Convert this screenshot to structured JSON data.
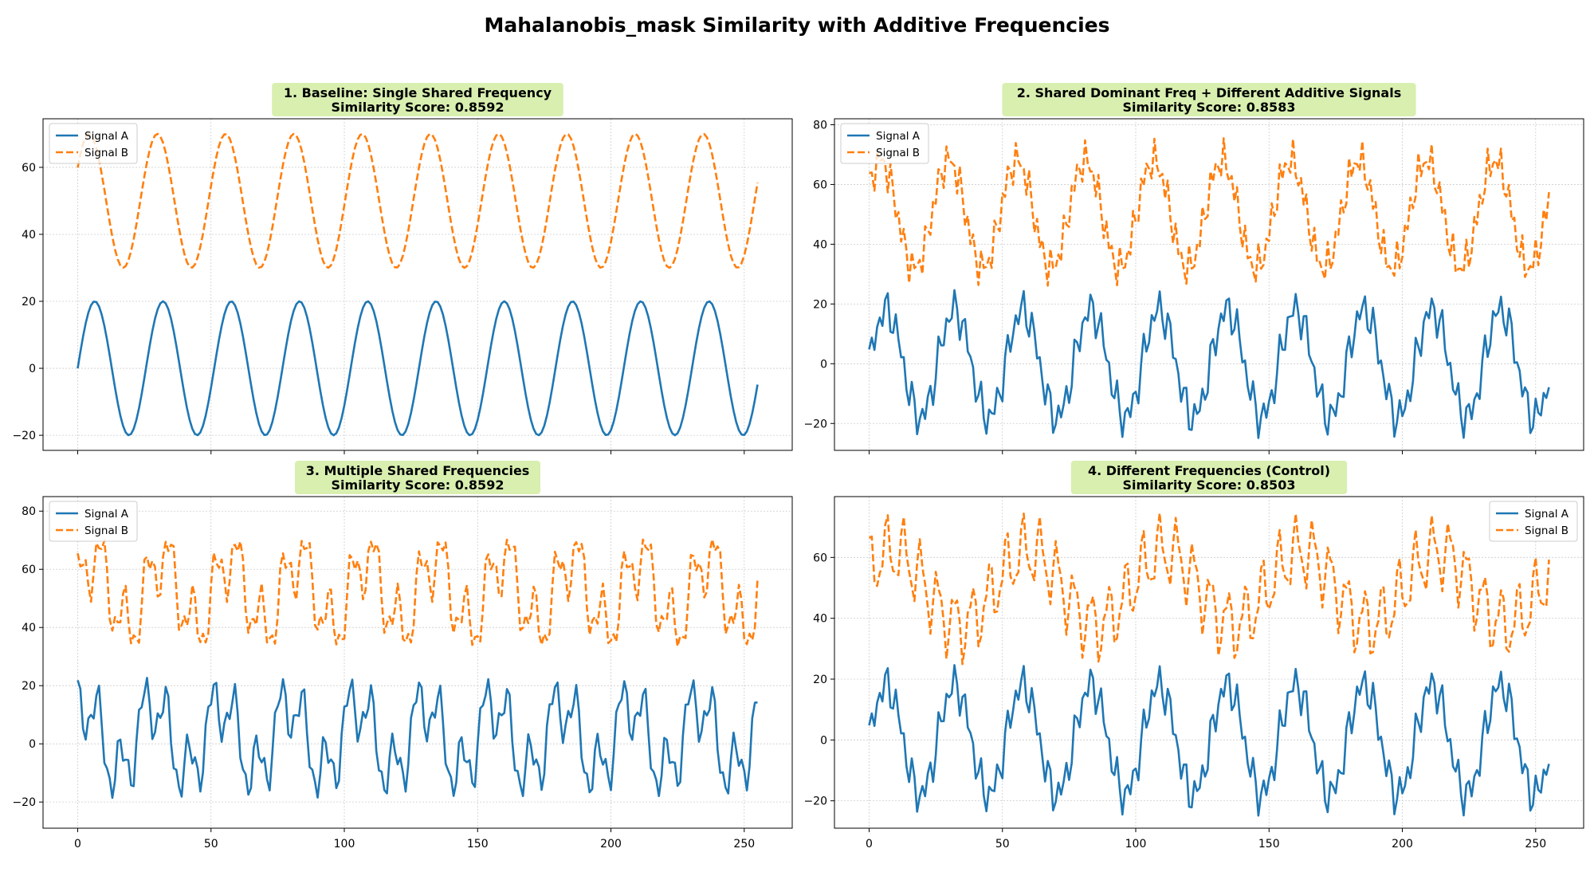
{
  "figure": {
    "title": "Mahalanobis_mask Similarity with Additive Frequencies",
    "colors": {
      "signal_a": "#1f77b4",
      "signal_b": "#ff7f0e",
      "title_box": "#d8efb0",
      "grid": "#cccccc"
    }
  },
  "chart_data": [
    {
      "type": "line",
      "title": "1. Baseline: Single Shared Frequency",
      "subtitle": "Similarity Score: 0.8592",
      "xlim": [
        -13,
        268
      ],
      "ylim": [
        -24.5,
        74.5
      ],
      "yticks": [
        -20,
        0,
        20,
        40,
        60
      ],
      "xticks": [
        0,
        50,
        100,
        150,
        200,
        250
      ],
      "show_xtick_labels": false,
      "legend_position": "upper-left",
      "grid": true,
      "x_range": [
        0,
        255
      ],
      "series": [
        {
          "name": "Signal A",
          "style": "solid",
          "color": "#1f77b4",
          "offset": 0,
          "components": [
            {
              "amp": 20,
              "period": 25.6,
              "phase": 0
            }
          ]
        },
        {
          "name": "Signal B",
          "style": "dashed",
          "color": "#ff7f0e",
          "offset": 50,
          "components": [
            {
              "amp": 20,
              "period": 25.6,
              "phase": 0.52
            }
          ]
        }
      ]
    },
    {
      "type": "line",
      "title": "2. Shared Dominant Freq + Different Additive Signals",
      "subtitle": "Similarity Score: 0.8583",
      "xlim": [
        -13,
        268
      ],
      "ylim": [
        -29,
        82
      ],
      "yticks": [
        -20,
        0,
        20,
        40,
        60,
        80
      ],
      "xticks": [
        0,
        50,
        100,
        150,
        200,
        250
      ],
      "show_xtick_labels": false,
      "legend_position": "upper-left",
      "grid": true,
      "x_range": [
        0,
        255
      ],
      "series": [
        {
          "name": "Signal A",
          "style": "solid",
          "color": "#1f77b4",
          "offset": 0,
          "components": [
            {
              "amp": 18,
              "period": 25.6,
              "phase": 0
            },
            {
              "amp": 5,
              "period": 3.2,
              "phase": 0.9
            },
            {
              "amp": 3,
              "period": 5.1,
              "phase": 0.3
            }
          ]
        },
        {
          "name": "Signal B",
          "style": "dashed",
          "color": "#ff7f0e",
          "offset": 50,
          "components": [
            {
              "amp": 18,
              "period": 25.6,
              "phase": 0.52
            },
            {
              "amp": 5,
              "period": 2.6,
              "phase": 0.4
            },
            {
              "amp": 3,
              "period": 4.3,
              "phase": 1.7
            }
          ]
        }
      ]
    },
    {
      "type": "line",
      "title": "3. Multiple Shared Frequencies",
      "subtitle": "Similarity Score: 0.8592",
      "xlim": [
        -13,
        268
      ],
      "ylim": [
        -29,
        85
      ],
      "yticks": [
        -20,
        0,
        20,
        40,
        60,
        80
      ],
      "xticks": [
        0,
        50,
        100,
        150,
        200,
        250
      ],
      "show_xtick_labels": true,
      "legend_position": "upper-left",
      "grid": true,
      "x_range": [
        0,
        255
      ],
      "series": [
        {
          "name": "Signal A",
          "style": "solid",
          "color": "#1f77b4",
          "offset": 2,
          "components": [
            {
              "amp": 12,
              "period": 25.6,
              "phase": 0.9
            },
            {
              "amp": 10,
              "period": 8.533,
              "phase": 2.2
            },
            {
              "amp": 5,
              "period": 3.66,
              "phase": 0.5
            }
          ]
        },
        {
          "name": "Signal B",
          "style": "dashed",
          "color": "#ff7f0e",
          "offset": 52,
          "components": [
            {
              "amp": 12,
              "period": 25.6,
              "phase": 0.1
            },
            {
              "amp": 10,
              "period": 8.533,
              "phase": 1.2
            },
            {
              "amp": 5,
              "period": 3.66,
              "phase": 2.5
            }
          ]
        }
      ]
    },
    {
      "type": "line",
      "title": "4. Different Frequencies (Control)",
      "subtitle": "Similarity Score: 0.8503",
      "xlim": [
        -13,
        268
      ],
      "ylim": [
        -29,
        80
      ],
      "yticks": [
        -20,
        0,
        20,
        40,
        60
      ],
      "xticks": [
        0,
        50,
        100,
        150,
        200,
        250
      ],
      "show_xtick_labels": true,
      "legend_position": "upper-right",
      "grid": true,
      "x_range": [
        0,
        255
      ],
      "series": [
        {
          "name": "Signal A",
          "style": "solid",
          "color": "#1f77b4",
          "offset": 0,
          "components": [
            {
              "amp": 18,
              "period": 25.6,
              "phase": 0
            },
            {
              "amp": 5,
              "period": 3.2,
              "phase": 0.9
            },
            {
              "amp": 3,
              "period": 5.1,
              "phase": 0.3
            }
          ]
        },
        {
          "name": "Signal B",
          "style": "dashed",
          "color": "#ff7f0e",
          "offset": 50,
          "components": [
            {
              "amp": 12,
              "period": 51.2,
              "phase": 0.5
            },
            {
              "amp": 10,
              "period": 6.4,
              "phase": 1.4
            },
            {
              "amp": 4,
              "period": 3.0,
              "phase": 0.2
            }
          ]
        }
      ]
    }
  ]
}
